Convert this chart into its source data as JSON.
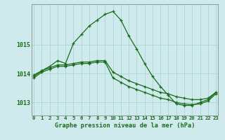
{
  "title": "Graphe pression niveau de la mer (hPa)",
  "bg_color": "#ceeaec",
  "grid_color": "#b0d8d8",
  "line_color": "#1a6b1a",
  "marker": "+",
  "x_labels": [
    "0",
    "1",
    "2",
    "3",
    "4",
    "5",
    "6",
    "7",
    "8",
    "9",
    "10",
    "11",
    "12",
    "13",
    "14",
    "15",
    "16",
    "17",
    "18",
    "19",
    "20",
    "21",
    "22",
    "23"
  ],
  "yticks": [
    1013,
    1014,
    1015
  ],
  "ylim": [
    1012.55,
    1016.4
  ],
  "xlim": [
    -0.3,
    23.3
  ],
  "series1": [
    1013.9,
    1014.1,
    1014.25,
    1014.45,
    1014.35,
    1015.05,
    1015.35,
    1015.65,
    1015.85,
    1016.05,
    1016.15,
    1015.85,
    1015.3,
    1014.85,
    1014.35,
    1013.9,
    1013.55,
    1013.25,
    1012.95,
    1012.9,
    1012.9,
    1013.0,
    1013.1,
    1013.35
  ],
  "series2": [
    1013.95,
    1014.1,
    1014.2,
    1014.3,
    1014.3,
    1014.35,
    1014.4,
    1014.4,
    1014.45,
    1014.45,
    1014.05,
    1013.9,
    1013.75,
    1013.65,
    1013.55,
    1013.45,
    1013.35,
    1013.3,
    1013.2,
    1013.15,
    1013.1,
    1013.1,
    1013.15,
    1013.35
  ],
  "series3": [
    1013.85,
    1014.05,
    1014.15,
    1014.25,
    1014.25,
    1014.3,
    1014.35,
    1014.35,
    1014.4,
    1014.4,
    1013.85,
    1013.7,
    1013.55,
    1013.45,
    1013.35,
    1013.25,
    1013.15,
    1013.1,
    1013.0,
    1012.95,
    1012.93,
    1012.95,
    1013.05,
    1013.3
  ]
}
